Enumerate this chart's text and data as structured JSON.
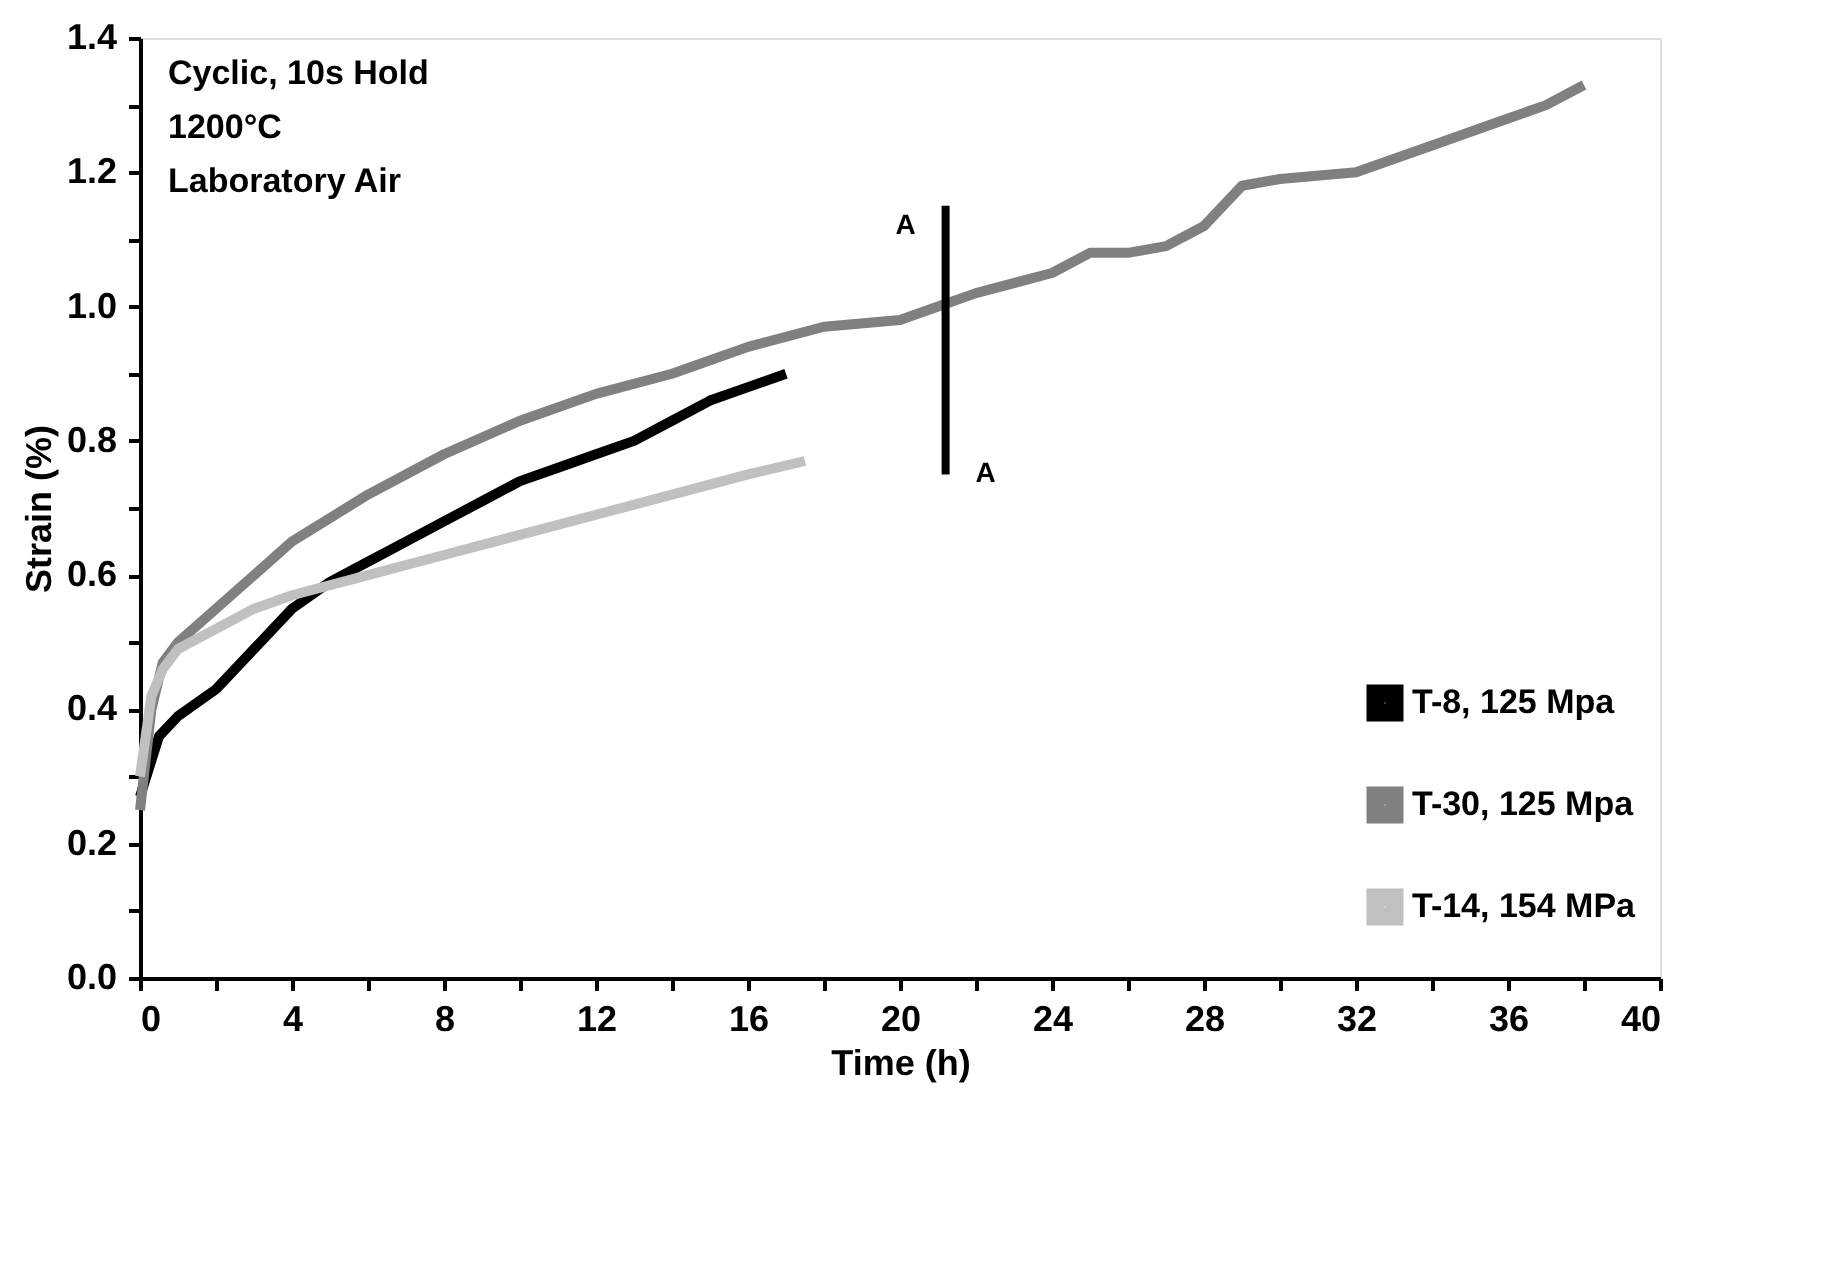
{
  "chart_data": {
    "type": "line",
    "xlabel": "Time (h)",
    "ylabel": "Strain (%)",
    "xlim": [
      0,
      40
    ],
    "ylim": [
      0,
      1.4
    ],
    "xticks": [
      0,
      {
        "value": 2,
        "label": null
      },
      4,
      {
        "value": 6,
        "label": null
      },
      8,
      {
        "value": 10,
        "label": null
      },
      12,
      {
        "value": 14,
        "label": null
      },
      16,
      {
        "value": 18,
        "label": null
      },
      20,
      {
        "value": 22,
        "label": null
      },
      24,
      {
        "value": 26,
        "label": null
      },
      28,
      {
        "value": 30,
        "label": null
      },
      32,
      {
        "value": 34,
        "label": null
      },
      36,
      {
        "value": 38,
        "label": null
      },
      40
    ],
    "yticks": [
      {
        "value": 0,
        "label": "0.0"
      },
      {
        "value": 0.1,
        "label": null
      },
      {
        "value": 0.2,
        "label": "0.2"
      },
      {
        "value": 0.3,
        "label": null
      },
      {
        "value": 0.4,
        "label": "0.4"
      },
      {
        "value": 0.5,
        "label": null
      },
      {
        "value": 0.6,
        "label": "0.6"
      },
      {
        "value": 0.7,
        "label": null
      },
      {
        "value": 0.8,
        "label": "0.8"
      },
      {
        "value": 0.9,
        "label": null
      },
      {
        "value": 1.0,
        "label": "1.0"
      },
      {
        "value": 1.1,
        "label": null
      },
      {
        "value": 1.2,
        "label": "1.2"
      },
      {
        "value": 1.3,
        "label": null
      },
      {
        "value": 1.4,
        "label": "1.4"
      }
    ],
    "grid": false,
    "legend": "bottom right",
    "marker": "none",
    "line_style": "solid",
    "series": [
      {
        "name": "T-8, 125 Mpa",
        "color": "#000000",
        "x": [
          0,
          0.5,
          1,
          2,
          3,
          4,
          5,
          6,
          7,
          8,
          9,
          10,
          11,
          12,
          13,
          14,
          15,
          16,
          17
        ],
        "values": [
          0.27,
          0.36,
          0.39,
          0.43,
          0.49,
          0.55,
          0.59,
          0.62,
          0.65,
          0.68,
          0.71,
          0.74,
          0.76,
          0.78,
          0.8,
          0.83,
          0.86,
          0.88,
          0.9
        ]
      },
      {
        "name": "T-30, 125 Mpa",
        "color": "#808080",
        "x": [
          0,
          0.3,
          0.6,
          1,
          2,
          3,
          4,
          6,
          8,
          10,
          12,
          14,
          16,
          18,
          20,
          21,
          22,
          24,
          25,
          26,
          27,
          28,
          29,
          30,
          32,
          34,
          36,
          37,
          38
        ],
        "values": [
          0.25,
          0.4,
          0.47,
          0.5,
          0.55,
          0.6,
          0.65,
          0.72,
          0.78,
          0.83,
          0.87,
          0.9,
          0.94,
          0.97,
          0.98,
          1.0,
          1.02,
          1.05,
          1.08,
          1.08,
          1.09,
          1.12,
          1.18,
          1.19,
          1.2,
          1.24,
          1.28,
          1.3,
          1.33
        ]
      },
      {
        "name": "T-14, 154 MPa",
        "color": "#c0c0c0",
        "x": [
          0,
          0.3,
          0.6,
          1,
          2,
          3,
          4,
          6,
          8,
          10,
          12,
          14,
          16,
          17.5
        ],
        "values": [
          0.3,
          0.42,
          0.46,
          0.49,
          0.52,
          0.55,
          0.57,
          0.6,
          0.63,
          0.66,
          0.69,
          0.72,
          0.75,
          0.77
        ]
      },
      {
        "color": "#000000",
        "x": [
          21.2,
          21.2
        ],
        "values": [
          0.75,
          1.15
        ]
      }
    ],
    "annotations": [
      "Cyclic, 10s Hold",
      "1200°C",
      "Laboratory Air",
      {
        "text": "A",
        "x": 21.2,
        "y": 1.15
      },
      {
        "text": "A",
        "x": 21.2,
        "y": 0.75
      }
    ]
  }
}
